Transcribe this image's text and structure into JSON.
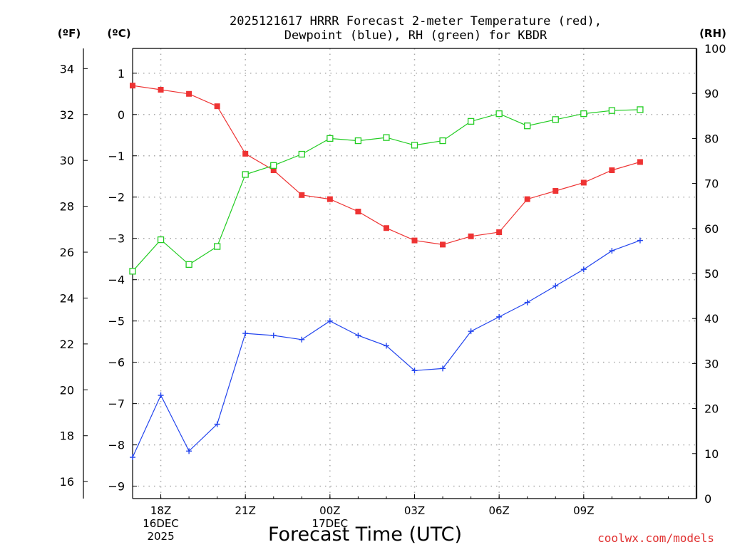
{
  "chart_data": {
    "type": "line",
    "title_lines": [
      "2025121617 HRRR Forecast 2-meter Temperature (red),",
      "Dewpoint (blue), RH (green) for KBDR"
    ],
    "axis_units": {
      "fahrenheit": "(ºF)",
      "celsius": "(ºC)",
      "rh": "(RH)"
    },
    "xlabel": "Forecast Time (UTC)",
    "credit": "coolwx.com/models",
    "x_hours": [
      17,
      18,
      19,
      20,
      21,
      22,
      23,
      24,
      25,
      26,
      27,
      28,
      29,
      30,
      31,
      32,
      33,
      34,
      35,
      36,
      37
    ],
    "x_ticks": [
      {
        "hour": 18,
        "lines": [
          "18Z",
          "16DEC",
          "2025"
        ]
      },
      {
        "hour": 21,
        "lines": [
          "21Z"
        ]
      },
      {
        "hour": 24,
        "lines": [
          "00Z",
          "17DEC"
        ]
      },
      {
        "hour": 27,
        "lines": [
          "03Z"
        ]
      },
      {
        "hour": 30,
        "lines": [
          "06Z"
        ]
      },
      {
        "hour": 33,
        "lines": [
          "09Z"
        ]
      }
    ],
    "x_range": [
      17,
      37
    ],
    "celsius_range": [
      -9.3,
      1.6
    ],
    "celsius_ticks": [
      "1",
      "0",
      "−1",
      "−2",
      "−3",
      "−4",
      "−5",
      "−6",
      "−7",
      "−8",
      "−9"
    ],
    "fahrenheit_ticks": [
      "34",
      "32",
      "30",
      "28",
      "26",
      "24",
      "22",
      "20",
      "18",
      "16"
    ],
    "rh_range": [
      0,
      100
    ],
    "rh_ticks": [
      "0",
      "10",
      "20",
      "30",
      "40",
      "50",
      "60",
      "70",
      "80",
      "90",
      "100"
    ],
    "series": [
      {
        "name": "2-meter Temperature",
        "units": "C",
        "color": "#ee3333",
        "marker": "filled-square",
        "values": [
          0.7,
          0.6,
          0.5,
          0.2,
          -0.95,
          -1.35,
          -1.95,
          -2.05,
          -2.35,
          -2.75,
          -3.05,
          -3.15,
          -2.95,
          -2.85,
          -2.05,
          -1.85,
          -1.65,
          -1.35,
          -1.15
        ]
      },
      {
        "name": "Dewpoint",
        "units": "C",
        "color": "#2244ee",
        "marker": "plus",
        "values": [
          -8.3,
          -6.8,
          -8.15,
          -7.5,
          -5.3,
          -5.35,
          -5.45,
          -5.0,
          -5.35,
          -5.6,
          -6.2,
          -6.15,
          -5.25,
          -4.9,
          -4.55,
          -4.15,
          -3.75,
          -3.3,
          -3.05
        ]
      },
      {
        "name": "RH",
        "units": "%",
        "color": "#22cc22",
        "marker": "open-square",
        "values": [
          50.5,
          57.5,
          52,
          56,
          72,
          74,
          76.5,
          80,
          79.5,
          80.2,
          78.5,
          79.5,
          83.8,
          85.5,
          82.8,
          84.2,
          85.5,
          86.2,
          86.4
        ]
      }
    ]
  }
}
